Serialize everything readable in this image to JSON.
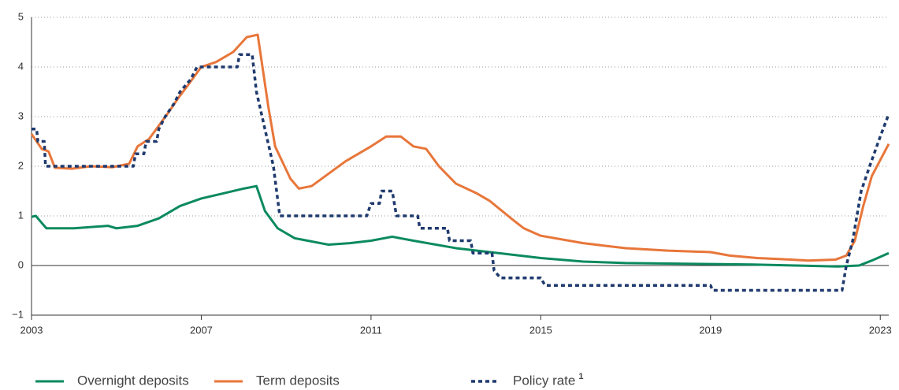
{
  "chart_data": {
    "type": "line",
    "xlim": [
      2003,
      2023.2
    ],
    "xticks": [
      2003,
      2007,
      2011,
      2015,
      2019,
      2023
    ],
    "ylim": [
      -1,
      5
    ],
    "yticks": [
      {
        "value": -1,
        "label": "−1"
      },
      0,
      1,
      2,
      3,
      4,
      5
    ],
    "grid": true,
    "series": [
      {
        "name": "Overnight deposits",
        "color": "#0b8a5e",
        "style": "solid",
        "x": [
          2003.0,
          2003.1,
          2003.2,
          2003.35,
          2004.0,
          2004.8,
          2005.0,
          2005.5,
          2006.0,
          2006.5,
          2007.0,
          2007.5,
          2008.0,
          2008.3,
          2008.5,
          2008.8,
          2009.2,
          2010.0,
          2010.5,
          2011.0,
          2011.5,
          2012.0,
          2013.0,
          2014.0,
          2015.0,
          2016.0,
          2017.0,
          2018.0,
          2019.0,
          2020.0,
          2021.0,
          2022.0,
          2022.5,
          2022.8,
          2023.2
        ],
        "values": [
          0.98,
          1.0,
          0.9,
          0.75,
          0.75,
          0.8,
          0.75,
          0.8,
          0.95,
          1.2,
          1.35,
          1.45,
          1.55,
          1.6,
          1.1,
          0.75,
          0.55,
          0.42,
          0.45,
          0.5,
          0.58,
          0.5,
          0.35,
          0.25,
          0.15,
          0.08,
          0.05,
          0.04,
          0.03,
          0.02,
          0.0,
          -0.02,
          0.0,
          0.1,
          0.25
        ]
      },
      {
        "name": "Term deposits",
        "color": "#e8763a",
        "style": "solid",
        "x": [
          2003.0,
          2003.24,
          2003.4,
          2003.55,
          2003.95,
          2004.4,
          2004.9,
          2005.3,
          2005.5,
          2005.77,
          2006.24,
          2006.48,
          2006.7,
          2007.0,
          2007.35,
          2007.75,
          2008.07,
          2008.33,
          2008.58,
          2008.74,
          2009.1,
          2009.3,
          2009.6,
          2010.0,
          2010.4,
          2011.0,
          2011.36,
          2011.7,
          2012.0,
          2012.3,
          2012.6,
          2013.0,
          2013.5,
          2013.8,
          2014.3,
          2014.6,
          2015.0,
          2016.0,
          2017.0,
          2018.0,
          2019.0,
          2019.45,
          2020.1,
          2020.9,
          2021.3,
          2021.95,
          2022.2,
          2022.4,
          2022.6,
          2022.8,
          2023.2
        ],
        "values": [
          2.65,
          2.35,
          2.3,
          1.97,
          1.95,
          2.0,
          1.98,
          2.05,
          2.4,
          2.55,
          3.1,
          3.4,
          3.65,
          4.0,
          4.1,
          4.3,
          4.6,
          4.65,
          3.2,
          2.4,
          1.75,
          1.55,
          1.6,
          1.85,
          2.1,
          2.4,
          2.6,
          2.6,
          2.4,
          2.35,
          2.0,
          1.65,
          1.45,
          1.3,
          0.95,
          0.75,
          0.6,
          0.45,
          0.35,
          0.3,
          0.27,
          0.2,
          0.15,
          0.12,
          0.1,
          0.12,
          0.2,
          0.5,
          1.2,
          1.8,
          2.45
        ]
      },
      {
        "name": "Policy rate",
        "footnote_marker": "1",
        "color": "#1f3a6e",
        "style": "dashed",
        "x": [
          2003.0,
          2003.12,
          2003.15,
          2003.3,
          2003.33,
          2005.4,
          2005.45,
          2005.65,
          2005.7,
          2005.95,
          2006.0,
          2006.15,
          2006.35,
          2006.5,
          2006.75,
          2006.9,
          2007.85,
          2007.9,
          2008.2,
          2008.3,
          2008.5,
          2008.7,
          2008.85,
          2010.9,
          2011.0,
          2011.2,
          2011.25,
          2011.5,
          2011.6,
          2012.1,
          2012.15,
          2012.8,
          2012.85,
          2013.35,
          2013.4,
          2013.85,
          2013.9,
          2014.05,
          2015.0,
          2015.1,
          2019.0,
          2019.05,
          2022.1,
          2022.2,
          2022.35,
          2022.55,
          2022.75,
          2023.0,
          2023.2
        ],
        "values": [
          2.75,
          2.75,
          2.5,
          2.5,
          2.0,
          2.0,
          2.25,
          2.25,
          2.5,
          2.5,
          2.75,
          3.0,
          3.25,
          3.5,
          3.75,
          4.0,
          4.0,
          4.25,
          4.25,
          3.5,
          2.75,
          2.0,
          1.0,
          1.0,
          1.25,
          1.25,
          1.5,
          1.5,
          1.0,
          1.0,
          0.75,
          0.75,
          0.5,
          0.5,
          0.25,
          0.25,
          -0.1,
          -0.25,
          -0.25,
          -0.4,
          -0.4,
          -0.5,
          -0.5,
          0.0,
          0.5,
          1.5,
          2.0,
          2.6,
          3.05
        ]
      }
    ]
  }
}
